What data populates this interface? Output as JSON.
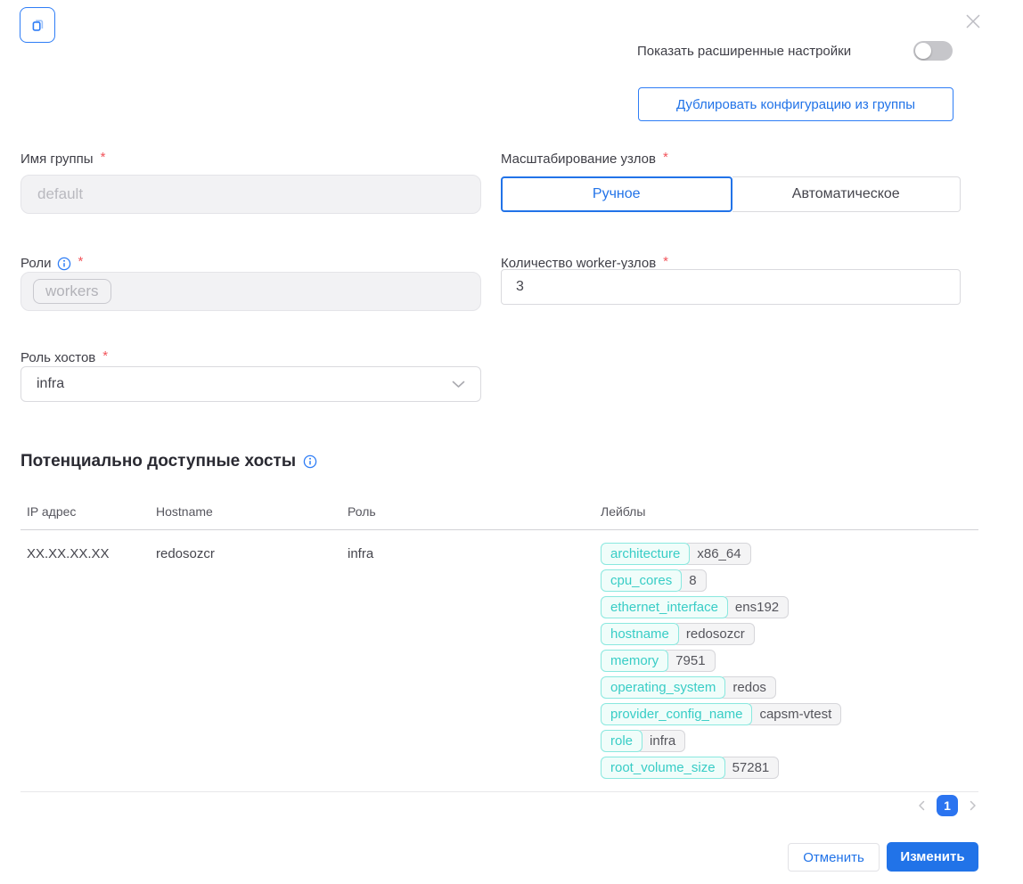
{
  "required_mark": "*",
  "colors": {
    "accent_blue": "#2173e8",
    "icon_blue": "#2e7df6",
    "teal_key_text": "#38cdc6",
    "teal_key_border": "#8ae8df",
    "required_red": "#f2545b",
    "toggle_off_gray": "#c6c6ca"
  },
  "icons": {
    "top_left": "copy-icon",
    "top_right": "close-icon",
    "labels_help": "info-icon",
    "select": "chevron-down-icon",
    "pager": [
      "chevron-left-icon",
      "chevron-right-icon"
    ]
  },
  "advanced_toggle": {
    "label": "Показать расширенные настройки",
    "state": "off"
  },
  "duplicate_button_label": "Дублировать конфигурацию из группы",
  "form": {
    "group_name": {
      "label": "Имя группы",
      "value": "default",
      "disabled": true
    },
    "scaling": {
      "label": "Масштабирование узлов",
      "options": [
        "Ручное",
        "Автоматическое"
      ],
      "selected": "Ручное"
    },
    "roles": {
      "label": "Роли",
      "tags": [
        "workers"
      ],
      "disabled": true
    },
    "worker_count": {
      "label": "Количество worker-узлов",
      "value": "3"
    },
    "host_role": {
      "label": "Роль хостов",
      "value": "infra"
    }
  },
  "hosts_section": {
    "title": "Потенциально доступные хосты",
    "table": {
      "columns": [
        "IP адрес",
        "Hostname",
        "Роль",
        "Лейблы"
      ],
      "rows": [
        {
          "ip": "XX.XX.XX.XX",
          "hostname": "redosozcr",
          "role": "infra",
          "labels": [
            {
              "key": "architecture",
              "value": "x86_64"
            },
            {
              "key": "cpu_cores",
              "value": "8"
            },
            {
              "key": "ethernet_interface",
              "value": "ens192"
            },
            {
              "key": "hostname",
              "value": "redosozcr"
            },
            {
              "key": "memory",
              "value": "7951"
            },
            {
              "key": "operating_system",
              "value": "redos"
            },
            {
              "key": "provider_config_name",
              "value": "capsm-vtest"
            },
            {
              "key": "role",
              "value": "infra"
            },
            {
              "key": "root_volume_size",
              "value": "57281"
            }
          ]
        }
      ]
    },
    "pagination": {
      "current_page": "1"
    }
  },
  "footer": {
    "cancel_label": "Отменить",
    "submit_label": "Изменить"
  }
}
